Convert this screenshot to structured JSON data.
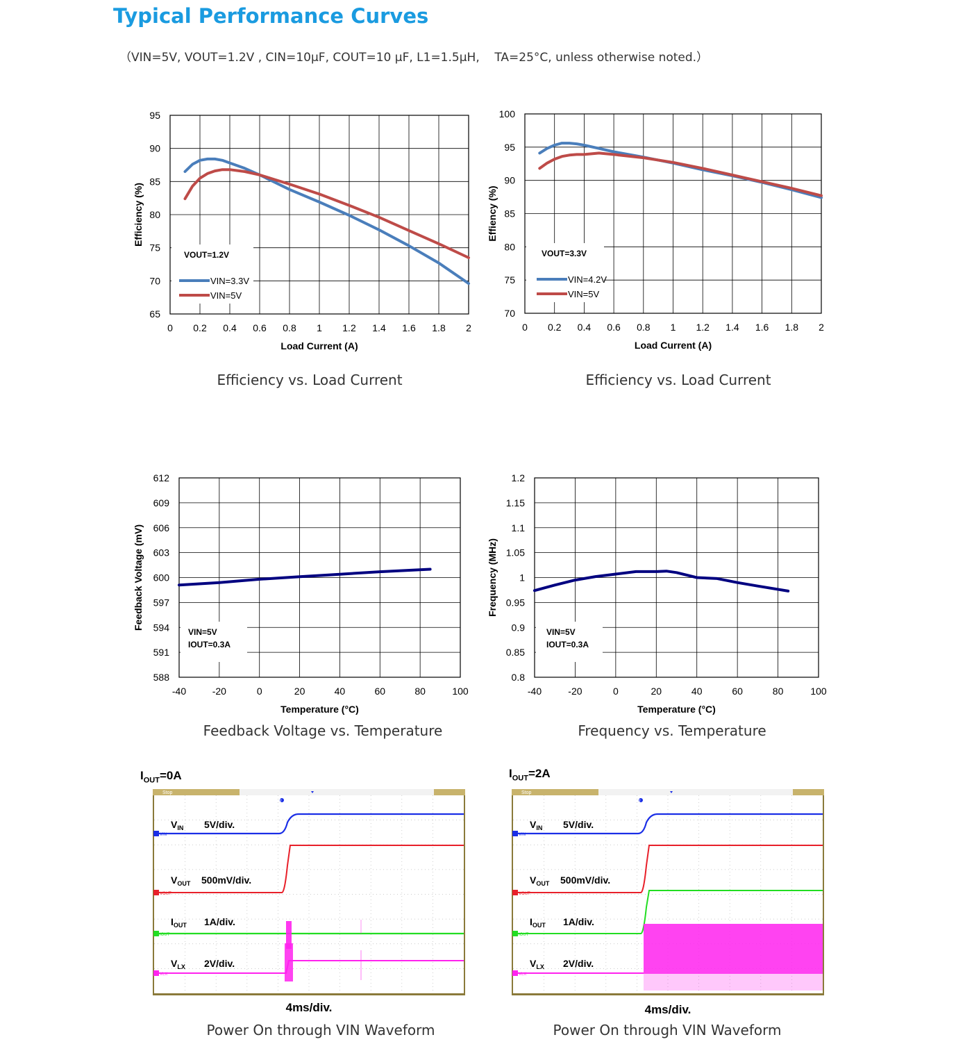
{
  "heading": "Typical Performance Curves",
  "conditions": "（VIN=5V, VOUT=1.2V , CIN=10μF, COUT=10 μF, L1=1.5μH,    TA=25°C, unless otherwise noted.）",
  "chart_data": [
    {
      "id": "eff12",
      "type": "line",
      "caption": "Efficiency vs. Load Current",
      "xlabel": "Load Current (A)",
      "ylabel": "Efficiency (%)",
      "xlim": [
        0,
        2
      ],
      "ylim": [
        65,
        95
      ],
      "xticks": [
        "0",
        "0.2",
        "0.4",
        "0.6",
        "0.8",
        "1",
        "1.2",
        "1.4",
        "1.6",
        "1.8",
        "2"
      ],
      "yticks": [
        "65",
        "70",
        "75",
        "80",
        "85",
        "90",
        "95"
      ],
      "grid": true,
      "annotation": [
        "VOUT=1.2V"
      ],
      "series": [
        {
          "name": "VIN=3.3V",
          "color": "#4a7ebb",
          "x": [
            0.1,
            0.15,
            0.2,
            0.25,
            0.3,
            0.35,
            0.4,
            0.5,
            0.6,
            0.7,
            0.8,
            1.0,
            1.2,
            1.4,
            1.6,
            1.8,
            2.0
          ],
          "y": [
            86.5,
            87.6,
            88.2,
            88.4,
            88.4,
            88.2,
            87.8,
            87.0,
            86.0,
            84.9,
            83.8,
            81.9,
            79.9,
            77.7,
            75.3,
            72.7,
            69.6
          ]
        },
        {
          "name": "VIN=5V",
          "color": "#be4b48",
          "x": [
            0.1,
            0.15,
            0.2,
            0.25,
            0.3,
            0.35,
            0.4,
            0.5,
            0.6,
            0.7,
            0.8,
            1.0,
            1.2,
            1.4,
            1.6,
            1.8,
            2.0
          ],
          "y": [
            82.4,
            84.3,
            85.5,
            86.2,
            86.6,
            86.8,
            86.8,
            86.5,
            86.0,
            85.3,
            84.6,
            83.1,
            81.4,
            79.6,
            77.6,
            75.6,
            73.5
          ]
        }
      ]
    },
    {
      "id": "eff33",
      "type": "line",
      "caption": "Efficiency vs. Load Current",
      "xlabel": "Load Current (A)",
      "ylabel": "Effiency (%)",
      "xlim": [
        0,
        2
      ],
      "ylim": [
        70,
        100
      ],
      "xticks": [
        "0",
        "0.2",
        "0.4",
        "0.6",
        "0.8",
        "1",
        "1.2",
        "1.4",
        "1.6",
        "1.8",
        "2"
      ],
      "yticks": [
        "70",
        "75",
        "80",
        "85",
        "90",
        "95",
        "100"
      ],
      "grid": true,
      "annotation": [
        "VOUT=3.3V"
      ],
      "series": [
        {
          "name": "VIN=4.2V",
          "color": "#4a7ebb",
          "x": [
            0.1,
            0.15,
            0.2,
            0.25,
            0.3,
            0.35,
            0.4,
            0.5,
            0.6,
            0.8,
            1.0,
            1.2,
            1.4,
            1.6,
            1.8,
            2.0
          ],
          "y": [
            94.1,
            94.8,
            95.3,
            95.6,
            95.6,
            95.5,
            95.3,
            94.8,
            94.3,
            93.5,
            92.6,
            91.6,
            90.7,
            89.7,
            88.6,
            87.4
          ]
        },
        {
          "name": "VIN=5V",
          "color": "#be4b48",
          "x": [
            0.1,
            0.15,
            0.2,
            0.25,
            0.3,
            0.35,
            0.4,
            0.5,
            0.6,
            0.8,
            1.0,
            1.2,
            1.4,
            1.6,
            1.8,
            2.0
          ],
          "y": [
            91.8,
            92.6,
            93.2,
            93.6,
            93.8,
            93.9,
            93.9,
            94.1,
            93.9,
            93.4,
            92.7,
            91.8,
            90.8,
            89.8,
            88.8,
            87.7
          ]
        }
      ]
    },
    {
      "id": "fbv",
      "type": "line",
      "caption": "Feedback Voltage vs. Temperature",
      "xlabel": "Temperature (°C)",
      "ylabel": "Feedback Voltage (mV)",
      "xlim": [
        -40,
        100
      ],
      "ylim": [
        588,
        612
      ],
      "xticks": [
        "-40",
        "-20",
        "0",
        "20",
        "40",
        "60",
        "80",
        "100"
      ],
      "yticks": [
        "588",
        "591",
        "594",
        "597",
        "600",
        "603",
        "606",
        "609",
        "612"
      ],
      "grid": true,
      "annotation": [
        "VIN=5V",
        "IOUT=0.3A"
      ],
      "series": [
        {
          "color": "#000080",
          "x": [
            -40,
            -20,
            0,
            20,
            40,
            60,
            85
          ],
          "y": [
            599.1,
            599.4,
            599.8,
            600.1,
            600.4,
            600.7,
            601.0
          ]
        }
      ]
    },
    {
      "id": "freq",
      "type": "line",
      "caption": "Frequency vs. Temperature",
      "xlabel": "Temperature (°C)",
      "ylabel": "Frequency (MHz)",
      "xlim": [
        -40,
        100
      ],
      "ylim": [
        0.8,
        1.2
      ],
      "xticks": [
        "-40",
        "-20",
        "0",
        "20",
        "40",
        "60",
        "80",
        "100"
      ],
      "yticks": [
        "0.8",
        "0.85",
        "0.9",
        "0.95",
        "1",
        "1.05",
        "1.1",
        "1.15",
        "1.2"
      ],
      "grid": true,
      "annotation": [
        "VIN=5V",
        "IOUT=0.3A"
      ],
      "series": [
        {
          "color": "#000080",
          "x": [
            -40,
            -30,
            -20,
            -10,
            0,
            10,
            20,
            25,
            30,
            40,
            50,
            60,
            70,
            85
          ],
          "y": [
            0.974,
            0.985,
            0.995,
            1.002,
            1.007,
            1.012,
            1.012,
            1.013,
            1.01,
            1.0,
            0.998,
            0.99,
            0.983,
            0.973
          ]
        }
      ]
    }
  ],
  "scopes": [
    {
      "id": "scope0",
      "title_main": "I",
      "title_sub": "OUT",
      "title_tail": "=0A",
      "time_div": "4ms/div.",
      "caption": "Power On through VIN Waveform",
      "status": "Stop",
      "channels": [
        {
          "name": "V",
          "sub": "IN",
          "scale": "5V/div.",
          "marker": "VIN",
          "color": "#1a2ee6"
        },
        {
          "name": "V",
          "sub": "OUT",
          "scale": "500mV/div.",
          "marker": "VOUT",
          "color": "#e8202a"
        },
        {
          "name": "I",
          "sub": "OUT",
          "scale": "1A/div.",
          "marker": "IOUT",
          "color": "#22dd22"
        },
        {
          "name": "V",
          "sub": "LX",
          "scale": "2V/div.",
          "marker": "VLX",
          "color": "#ff22ee"
        }
      ]
    },
    {
      "id": "scope1",
      "title_main": "I",
      "title_sub": "OUT",
      "title_tail": "=2A",
      "time_div": "4ms/div.",
      "caption": "Power On through VIN Waveform",
      "status": "Stop",
      "channels": [
        {
          "name": "V",
          "sub": "IN",
          "scale": "5V/div.",
          "marker": "VIN",
          "color": "#1a2ee6"
        },
        {
          "name": "V",
          "sub": "OUT",
          "scale": "500mV/div.",
          "marker": "VOUT",
          "color": "#e8202a"
        },
        {
          "name": "I",
          "sub": "OUT",
          "scale": "1A/div.",
          "marker": "IOUT",
          "color": "#22dd22"
        },
        {
          "name": "V",
          "sub": "LX",
          "scale": "2V/div.",
          "marker": "VLX",
          "color": "#ff22ee"
        }
      ]
    }
  ]
}
